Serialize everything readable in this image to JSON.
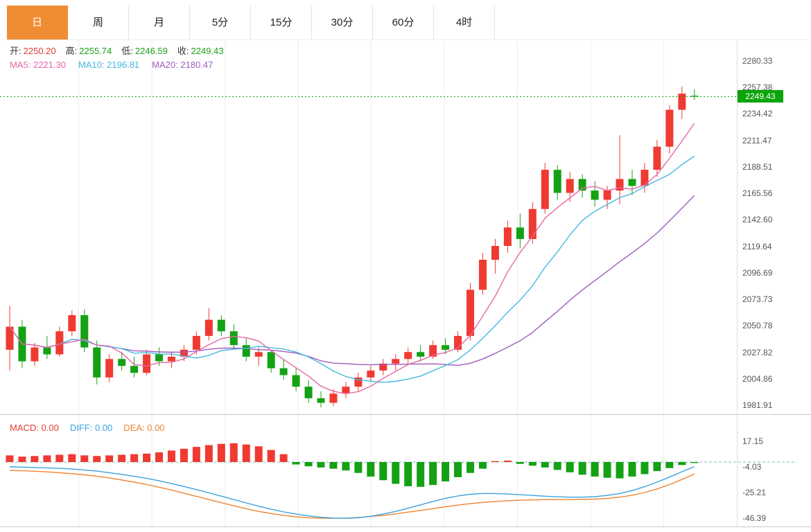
{
  "tabs": [
    {
      "label": "日",
      "active": true
    },
    {
      "label": "周",
      "active": false
    },
    {
      "label": "月",
      "active": false
    },
    {
      "label": "5分",
      "active": false
    },
    {
      "label": "15分",
      "active": false
    },
    {
      "label": "30分",
      "active": false
    },
    {
      "label": "60分",
      "active": false
    },
    {
      "label": "4时",
      "active": false
    }
  ],
  "legend": {
    "open_label": "开:",
    "open": "2250.20",
    "high_label": "高:",
    "high": "2255.74",
    "low_label": "低:",
    "low": "2246.59",
    "close_label": "收:",
    "close": "2249.43",
    "ma5_label": "MA5:",
    "ma5": "2221.30",
    "ma10_label": "MA10:",
    "ma10": "2196.81",
    "ma20_label": "MA20:",
    "ma20": "2180.47"
  },
  "macd_legend": {
    "macd_label": "MACD:",
    "macd": "0.00",
    "diff_label": "DIFF:",
    "diff": "0.00",
    "dea_label": "DEA:",
    "dea": "0.00"
  },
  "price_tag": "2249.43",
  "main_axis_labels": [
    "2280.33",
    "2257.38",
    "2234.42",
    "2211.47",
    "2188.51",
    "2165.56",
    "2142.60",
    "2119.64",
    "2096.69",
    "2073.73",
    "2050.78",
    "2027.82",
    "2004.86",
    "1981.91"
  ],
  "macd_axis_labels": [
    "17.15",
    "-4.03",
    "-25.21",
    "-46.39"
  ],
  "colors": {
    "up": "#ef3a32",
    "down": "#14a114",
    "ma5": "#e567a8",
    "ma10": "#45b7e0",
    "ma20": "#9f5bbf",
    "diff": "#3aa2e0",
    "dea": "#ef8432",
    "tab_active_bg": "#f08c33",
    "price_tag_bg": "#0aa50a",
    "dotted_line": "#0aa50a",
    "macd_zero_line": "#6cc7b5",
    "grid": "#ededed"
  },
  "chart_data": {
    "type": "candlestick",
    "timeframe": "日",
    "price_panel": {
      "title": "",
      "last_price": 2249.43,
      "open": 2250.2,
      "high": 2255.74,
      "low": 2246.59,
      "close": 2249.43,
      "ma_values": {
        "MA5": 2221.3,
        "MA10": 2196.81,
        "MA20": 2180.47
      },
      "y_ticks": [
        2280.33,
        2257.38,
        2234.42,
        2211.47,
        2188.51,
        2165.56,
        2142.6,
        2119.64,
        2096.69,
        2073.73,
        2050.78,
        2027.82,
        2004.86,
        1981.91
      ],
      "ohlc": [
        [
          2030,
          2068,
          2012,
          2050
        ],
        [
          2050,
          2056,
          2014,
          2020
        ],
        [
          2020,
          2036,
          2016,
          2032
        ],
        [
          2032,
          2042,
          2022,
          2026
        ],
        [
          2026,
          2050,
          2024,
          2046
        ],
        [
          2046,
          2064,
          2042,
          2060
        ],
        [
          2060,
          2065,
          2028,
          2032
        ],
        [
          2032,
          2038,
          2000,
          2006
        ],
        [
          2006,
          2026,
          2002,
          2022
        ],
        [
          2022,
          2028,
          2012,
          2016
        ],
        [
          2016,
          2024,
          2006,
          2010
        ],
        [
          2010,
          2030,
          2008,
          2026
        ],
        [
          2026,
          2032,
          2016,
          2020
        ],
        [
          2020,
          2028,
          2014,
          2024
        ],
        [
          2024,
          2034,
          2020,
          2030
        ],
        [
          2030,
          2046,
          2026,
          2042
        ],
        [
          2042,
          2066,
          2038,
          2056
        ],
        [
          2056,
          2060,
          2042,
          2046
        ],
        [
          2046,
          2052,
          2030,
          2034
        ],
        [
          2034,
          2040,
          2020,
          2024
        ],
        [
          2024,
          2032,
          2016,
          2028
        ],
        [
          2028,
          2030,
          2010,
          2014
        ],
        [
          2014,
          2022,
          2004,
          2008
        ],
        [
          2008,
          2014,
          1994,
          1998
        ],
        [
          1998,
          2004,
          1984,
          1988
        ],
        [
          1988,
          1994,
          1980,
          1984
        ],
        [
          1984,
          1996,
          1981,
          1992
        ],
        [
          1992,
          2002,
          1988,
          1998
        ],
        [
          1998,
          2010,
          1994,
          2006
        ],
        [
          2006,
          2016,
          2002,
          2012
        ],
        [
          2012,
          2022,
          2008,
          2018
        ],
        [
          2018,
          2026,
          2012,
          2022
        ],
        [
          2022,
          2032,
          2018,
          2028
        ],
        [
          2028,
          2034,
          2020,
          2024
        ],
        [
          2024,
          2038,
          2022,
          2034
        ],
        [
          2034,
          2040,
          2026,
          2030
        ],
        [
          2030,
          2046,
          2028,
          2042
        ],
        [
          2042,
          2088,
          2038,
          2082
        ],
        [
          2082,
          2114,
          2078,
          2108
        ],
        [
          2108,
          2126,
          2096,
          2120
        ],
        [
          2120,
          2142,
          2114,
          2136
        ],
        [
          2136,
          2148,
          2118,
          2126
        ],
        [
          2126,
          2158,
          2122,
          2152
        ],
        [
          2152,
          2192,
          2148,
          2186
        ],
        [
          2186,
          2190,
          2160,
          2166
        ],
        [
          2166,
          2184,
          2158,
          2178
        ],
        [
          2178,
          2182,
          2162,
          2168
        ],
        [
          2168,
          2176,
          2154,
          2160
        ],
        [
          2160,
          2172,
          2152,
          2168
        ],
        [
          2168,
          2216,
          2156,
          2178
        ],
        [
          2178,
          2186,
          2164,
          2172
        ],
        [
          2172,
          2192,
          2166,
          2186
        ],
        [
          2186,
          2212,
          2180,
          2206
        ],
        [
          2206,
          2242,
          2200,
          2238
        ],
        [
          2238,
          2258,
          2230,
          2252
        ],
        [
          2250.2,
          2255.74,
          2246.59,
          2249.43
        ]
      ]
    },
    "macd_panel": {
      "macd": 0.0,
      "diff": 0.0,
      "dea": 0.0,
      "y_ticks": [
        17.15,
        -4.03,
        -25.21,
        -46.39
      ],
      "histogram": [
        5.5,
        4.5,
        5,
        5.5,
        6,
        6.5,
        5.5,
        5,
        5.5,
        6,
        6.5,
        7,
        8,
        9.5,
        11,
        12.5,
        14,
        15,
        15.5,
        14.5,
        13,
        10,
        6.5,
        -2,
        -3.5,
        -4.5,
        -5.5,
        -7,
        -9,
        -12,
        -15,
        -18,
        -20,
        -20.5,
        -19,
        -16,
        -12.5,
        -9,
        -5.5,
        0.8,
        1.2,
        -1.5,
        -3,
        -4.5,
        -6.5,
        -8.5,
        -10.5,
        -12,
        -13,
        -13.5,
        -12,
        -10,
        -7.5,
        -5,
        -2.5,
        -0.8
      ],
      "diff_line": [
        -4,
        -4.2,
        -4.5,
        -4.8,
        -5.2,
        -5.8,
        -6.5,
        -7.5,
        -8.8,
        -10.2,
        -11.8,
        -13.5,
        -15.5,
        -17.8,
        -20.2,
        -22.8,
        -25.5,
        -28.2,
        -31,
        -33.8,
        -36.5,
        -39,
        -41.2,
        -43,
        -44.5,
        -45.6,
        -46.3,
        -46.5,
        -46,
        -44.8,
        -43,
        -40.8,
        -38.2,
        -35.4,
        -32.6,
        -30,
        -28,
        -26.6,
        -26,
        -26,
        -26.4,
        -27,
        -27.6,
        -28.2,
        -28.7,
        -29,
        -29,
        -28.6,
        -27.6,
        -26,
        -23.6,
        -20.4,
        -16.6,
        -12.4,
        -8,
        -3.8
      ],
      "dea_line": [
        -7,
        -7.2,
        -7.6,
        -8.1,
        -8.8,
        -9.6,
        -10.6,
        -11.8,
        -13.2,
        -14.8,
        -16.6,
        -18.6,
        -20.8,
        -23.2,
        -25.8,
        -28.4,
        -31,
        -33.6,
        -36.2,
        -38.6,
        -40.8,
        -42.6,
        -44,
        -45.2,
        -46,
        -46.4,
        -46.5,
        -46.3,
        -45.8,
        -45,
        -44,
        -42.8,
        -41.4,
        -40,
        -38.5,
        -37,
        -35.6,
        -34.4,
        -33.4,
        -32.6,
        -32,
        -31.6,
        -31.3,
        -31.1,
        -31,
        -31,
        -30.9,
        -30.6,
        -30,
        -29,
        -27.4,
        -25.2,
        -22.2,
        -18.6,
        -14.4,
        -9.8
      ]
    }
  }
}
